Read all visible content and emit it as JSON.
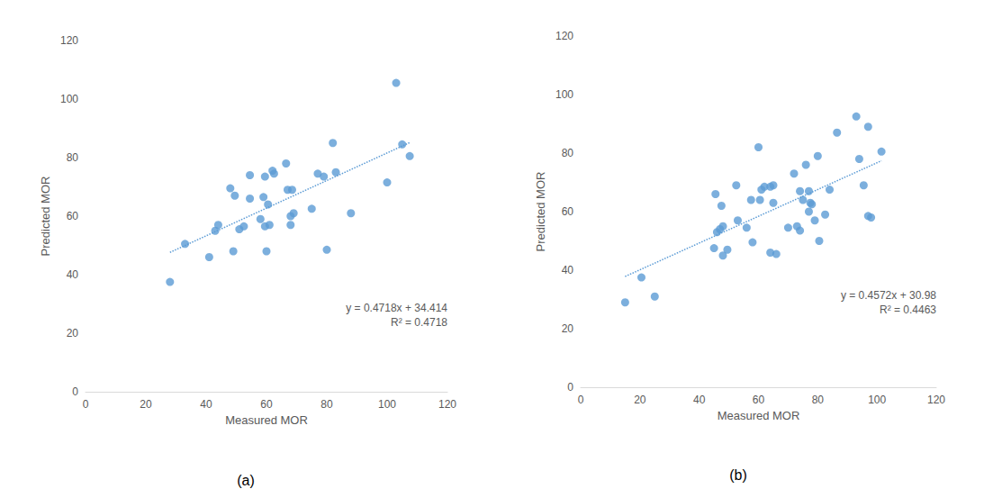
{
  "chart_data": [
    {
      "type": "scatter",
      "caption": "(a)",
      "xlabel": "Measured MOR",
      "ylabel": "Predicted MOR",
      "color": "#5b9bd5",
      "grid": false,
      "marker": "circle",
      "xlim": [
        0,
        120
      ],
      "ylim": [
        0,
        120
      ],
      "xticks": [
        0,
        20,
        40,
        60,
        80,
        100,
        120
      ],
      "yticks": [
        0,
        20,
        40,
        60,
        80,
        100,
        120
      ],
      "x": [
        28,
        33,
        41,
        43,
        44,
        48,
        49.5,
        49,
        51,
        52.5,
        54.5,
        54.5,
        58,
        59,
        59.5,
        60,
        59.5,
        60.5,
        61,
        62,
        62.5,
        66.5,
        67,
        68,
        68,
        68.5,
        69,
        75,
        77,
        79,
        80,
        82,
        83,
        88,
        100,
        103,
        105,
        107.5
      ],
      "y": [
        37.5,
        50.5,
        46,
        55,
        57,
        69.5,
        67,
        48,
        55.5,
        56.5,
        74,
        66,
        59,
        66.5,
        73.5,
        48,
        56.5,
        64,
        57,
        75.5,
        74.5,
        78,
        69,
        57,
        60,
        69,
        61,
        62.5,
        74.5,
        73.5,
        48.5,
        85,
        75,
        61,
        71.5,
        105.5,
        84.5,
        80.5
      ],
      "trendline": {
        "slope": 0.4718,
        "intercept": 34.414,
        "line_style": "dotted"
      },
      "annotations": [
        "y = 0.4718x + 34.414",
        "R² = 0.4718"
      ]
    },
    {
      "type": "scatter",
      "caption": "(b)",
      "xlabel": "Measured MOR",
      "ylabel": "Predicted MOR",
      "color": "#5b9bd5",
      "grid": false,
      "marker": "circle",
      "xlim": [
        0,
        120
      ],
      "ylim": [
        0,
        120
      ],
      "xticks": [
        0,
        20,
        40,
        60,
        80,
        100,
        120
      ],
      "yticks": [
        0,
        20,
        40,
        60,
        80,
        100,
        120
      ],
      "x": [
        15,
        20.5,
        25,
        45,
        45.5,
        46,
        47,
        47.5,
        48,
        48,
        49.5,
        52.5,
        53,
        56,
        57.5,
        58,
        60,
        60.5,
        61,
        62,
        64,
        64,
        65,
        65,
        66,
        70,
        72,
        73,
        74,
        74,
        75,
        76,
        77,
        77,
        77.5,
        78,
        79,
        80,
        80.5,
        82.5,
        84,
        86.5,
        93,
        94,
        95.5,
        97,
        97,
        98,
        101.5
      ],
      "y": [
        29,
        37.5,
        31,
        47.5,
        66,
        53,
        54,
        62,
        55,
        45,
        47,
        69,
        57,
        54.5,
        64,
        49.5,
        82,
        64,
        67.5,
        68.5,
        68.5,
        46,
        63,
        69,
        45.5,
        54.5,
        73,
        55,
        67,
        53.5,
        64,
        76,
        60,
        67,
        63,
        62.5,
        57,
        79,
        50,
        59,
        67.5,
        87,
        92.5,
        78,
        69,
        58.5,
        89,
        58,
        80.5
      ],
      "trendline": {
        "slope": 0.4572,
        "intercept": 30.98,
        "line_style": "dotted"
      },
      "annotations": [
        "y = 0.4572x + 30.98",
        "R² = 0.4463"
      ]
    }
  ]
}
